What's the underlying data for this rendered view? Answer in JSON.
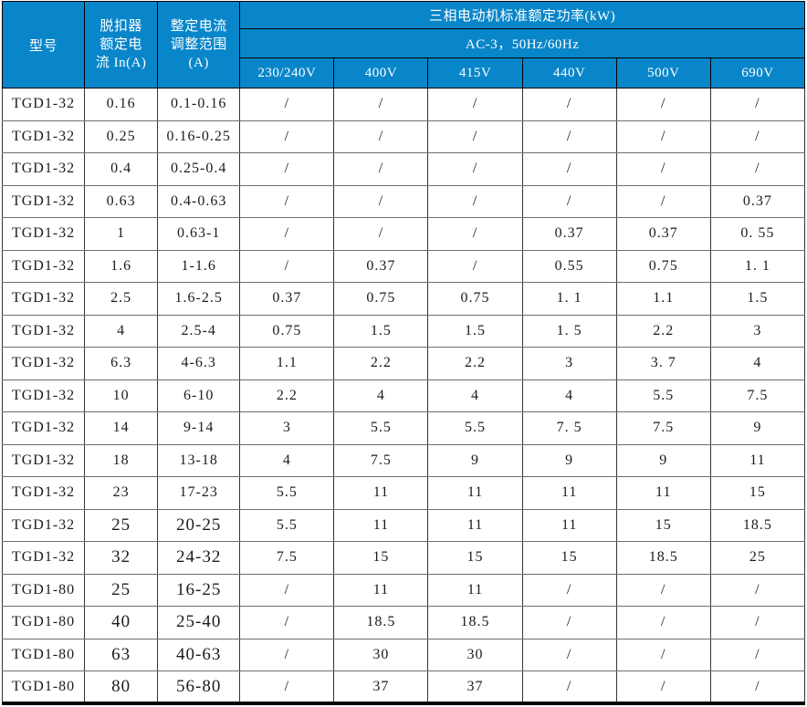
{
  "colors": {
    "header_bg": "#0986C9",
    "header_text": "#FFFFFF",
    "outer_border": "#000000",
    "inner_border_vertical": "#353535",
    "inner_border_horizontal": "#6E6E6E",
    "body_text": "#1C1C1C"
  },
  "table": {
    "header": {
      "col_model": "型号",
      "col_trip_current": "脱扣器\n额定电\n流 In(A)",
      "col_adjust_range": "整定电流\n调整范围\n(A)",
      "power_title": "三相电动机标准额定功率(kW)",
      "power_subtitle": "AC-3，50Hz/60Hz",
      "voltages": [
        "230/240V",
        "400V",
        "415V",
        "440V",
        "500V",
        "690V"
      ]
    },
    "rows": [
      {
        "model": "TGD1-32",
        "in": "0.16",
        "range": "0.1-0.16",
        "powers": [
          "/",
          "/",
          "/",
          "/",
          "/",
          "/"
        ]
      },
      {
        "model": "TGD1-32",
        "in": "0.25",
        "range": "0.16-0.25",
        "powers": [
          "/",
          "/",
          "/",
          "/",
          "/",
          "/"
        ]
      },
      {
        "model": "TGD1-32",
        "in": "0.4",
        "range": "0.25-0.4",
        "powers": [
          "/",
          "/",
          "/",
          "/",
          "/",
          "/"
        ]
      },
      {
        "model": "TGD1-32",
        "in": "0.63",
        "range": "0.4-0.63",
        "powers": [
          "/",
          "/",
          "/",
          "/",
          "/",
          "0.37"
        ]
      },
      {
        "model": "TGD1-32",
        "in": "1",
        "range": "0.63-1",
        "powers": [
          "/",
          "/",
          "/",
          "0.37",
          "0.37",
          "0. 55"
        ]
      },
      {
        "model": "TGD1-32",
        "in": "1.6",
        "range": "1-1.6",
        "powers": [
          "/",
          "0.37",
          "/",
          "0.55",
          "0.75",
          "1. 1"
        ]
      },
      {
        "model": "TGD1-32",
        "in": "2.5",
        "range": "1.6-2.5",
        "powers": [
          "0.37",
          "0.75",
          "0.75",
          "1. 1",
          "1.1",
          "1.5"
        ]
      },
      {
        "model": "TGD1-32",
        "in": "4",
        "range": "2.5-4",
        "powers": [
          "0.75",
          "1.5",
          "1.5",
          "1. 5",
          "2.2",
          "3"
        ]
      },
      {
        "model": "TGD1-32",
        "in": "6.3",
        "range": "4-6.3",
        "powers": [
          "1.1",
          "2.2",
          "2.2",
          "3",
          "3. 7",
          "4"
        ]
      },
      {
        "model": "TGD1-32",
        "in": "10",
        "range": "6-10",
        "powers": [
          "2.2",
          "4",
          "4",
          "4",
          "5.5",
          "7.5"
        ]
      },
      {
        "model": "TGD1-32",
        "in": "14",
        "range": "9-14",
        "powers": [
          "3",
          "5.5",
          "5.5",
          "7. 5",
          "7.5",
          "9"
        ]
      },
      {
        "model": "TGD1-32",
        "in": "18",
        "range": "13-18",
        "powers": [
          "4",
          "7.5",
          "9",
          "9",
          "9",
          "11"
        ]
      },
      {
        "model": "TGD1-32",
        "in": "23",
        "range": "17-23",
        "powers": [
          "5.5",
          "11",
          "11",
          "11",
          "11",
          "15"
        ]
      },
      {
        "model": "TGD1-32",
        "in": "25",
        "range": "20-25",
        "powers": [
          "5.5",
          "11",
          "11",
          "11",
          "15",
          "18.5"
        ],
        "large_in": true
      },
      {
        "model": "TGD1-32",
        "in": "32",
        "range": "24-32",
        "powers": [
          "7.5",
          "15",
          "15",
          "15",
          "18.5",
          "25"
        ],
        "large_in": true
      },
      {
        "model": "TGD1-80",
        "in": "25",
        "range": "16-25",
        "powers": [
          "/",
          "11",
          "11",
          "/",
          "/",
          "/"
        ],
        "large_in": true
      },
      {
        "model": "TGD1-80",
        "in": "40",
        "range": "25-40",
        "powers": [
          "/",
          "18.5",
          "18.5",
          "/",
          "/",
          "/"
        ],
        "large_in": true
      },
      {
        "model": "TGD1-80",
        "in": "63",
        "range": "40-63",
        "powers": [
          "/",
          "30",
          "30",
          "/",
          "/",
          "/"
        ],
        "large_in": true
      },
      {
        "model": "TGD1-80",
        "in": "80",
        "range": "56-80",
        "powers": [
          "/",
          "37",
          "37",
          "/",
          "/",
          "/"
        ],
        "large_in": true
      }
    ]
  }
}
